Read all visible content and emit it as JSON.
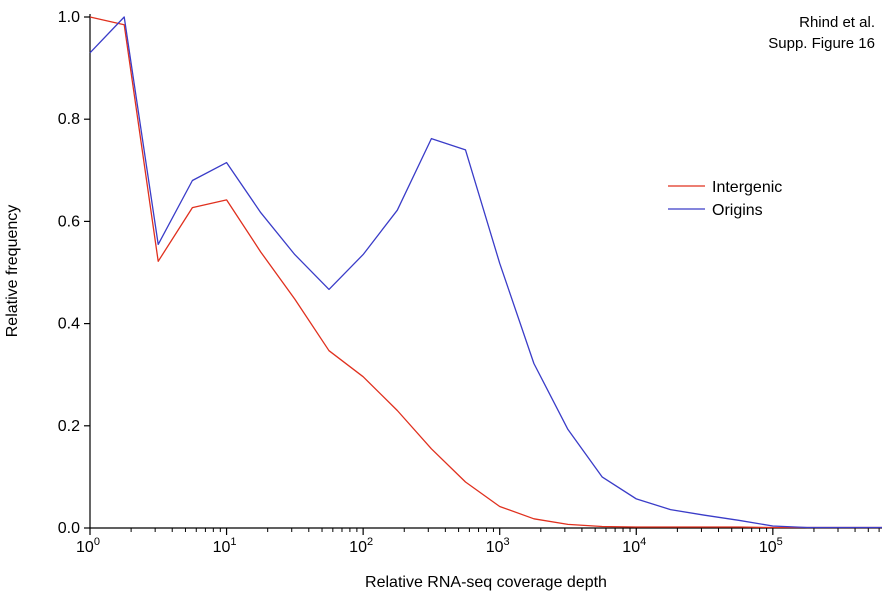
{
  "chart_data": {
    "type": "line",
    "xscale": "log10",
    "xlabel": "Relative RNA-seq coverage depth",
    "ylabel": "Relative frequency",
    "xlim": [
      1,
      630000
    ],
    "ylim": [
      0,
      1.0
    ],
    "x_ticks": [
      {
        "base": "10",
        "exp": "0",
        "value": 1
      },
      {
        "base": "10",
        "exp": "1",
        "value": 10
      },
      {
        "base": "10",
        "exp": "2",
        "value": 100
      },
      {
        "base": "10",
        "exp": "3",
        "value": 1000
      },
      {
        "base": "10",
        "exp": "4",
        "value": 10000
      },
      {
        "base": "10",
        "exp": "5",
        "value": 100000
      }
    ],
    "y_ticks": [
      "0.0",
      "0.2",
      "0.4",
      "0.6",
      "0.8",
      "1.0"
    ],
    "grid": false,
    "legend_position": "right",
    "annotation": [
      "Rhind et al.",
      "Supp. Figure 16"
    ],
    "series": [
      {
        "name": "Intergenic",
        "color": "#e0301e",
        "points": [
          [
            1,
            1.0
          ],
          [
            1.78,
            0.985
          ],
          [
            3.16,
            0.522
          ],
          [
            5.62,
            0.627
          ],
          [
            10,
            0.642
          ],
          [
            17.8,
            0.54
          ],
          [
            31.6,
            0.448
          ],
          [
            56.2,
            0.347
          ],
          [
            100,
            0.296
          ],
          [
            178,
            0.23
          ],
          [
            316,
            0.155
          ],
          [
            562,
            0.09
          ],
          [
            1000,
            0.042
          ],
          [
            1780,
            0.018
          ],
          [
            3160,
            0.007
          ],
          [
            5620,
            0.003
          ],
          [
            10000,
            0.002
          ],
          [
            17800,
            0.002
          ],
          [
            31600,
            0.002
          ],
          [
            56200,
            0.002
          ],
          [
            100000,
            0.001
          ],
          [
            178000,
            0.001
          ],
          [
            316000,
            0.001
          ],
          [
            630000,
            0.001
          ]
        ]
      },
      {
        "name": "Origins",
        "color": "#3a3cc8",
        "points": [
          [
            1,
            0.93
          ],
          [
            1.78,
            1.0
          ],
          [
            3.16,
            0.555
          ],
          [
            5.62,
            0.68
          ],
          [
            10,
            0.715
          ],
          [
            17.8,
            0.617
          ],
          [
            31.6,
            0.535
          ],
          [
            56.2,
            0.467
          ],
          [
            100,
            0.535
          ],
          [
            178,
            0.622
          ],
          [
            316,
            0.762
          ],
          [
            562,
            0.74
          ],
          [
            1000,
            0.518
          ],
          [
            1780,
            0.322
          ],
          [
            3160,
            0.193
          ],
          [
            5620,
            0.1
          ],
          [
            10000,
            0.057
          ],
          [
            17800,
            0.036
          ],
          [
            31600,
            0.025
          ],
          [
            56200,
            0.015
          ],
          [
            100000,
            0.004
          ],
          [
            178000,
            0.001
          ],
          [
            316000,
            0.001
          ],
          [
            630000,
            0.001
          ]
        ]
      }
    ]
  }
}
